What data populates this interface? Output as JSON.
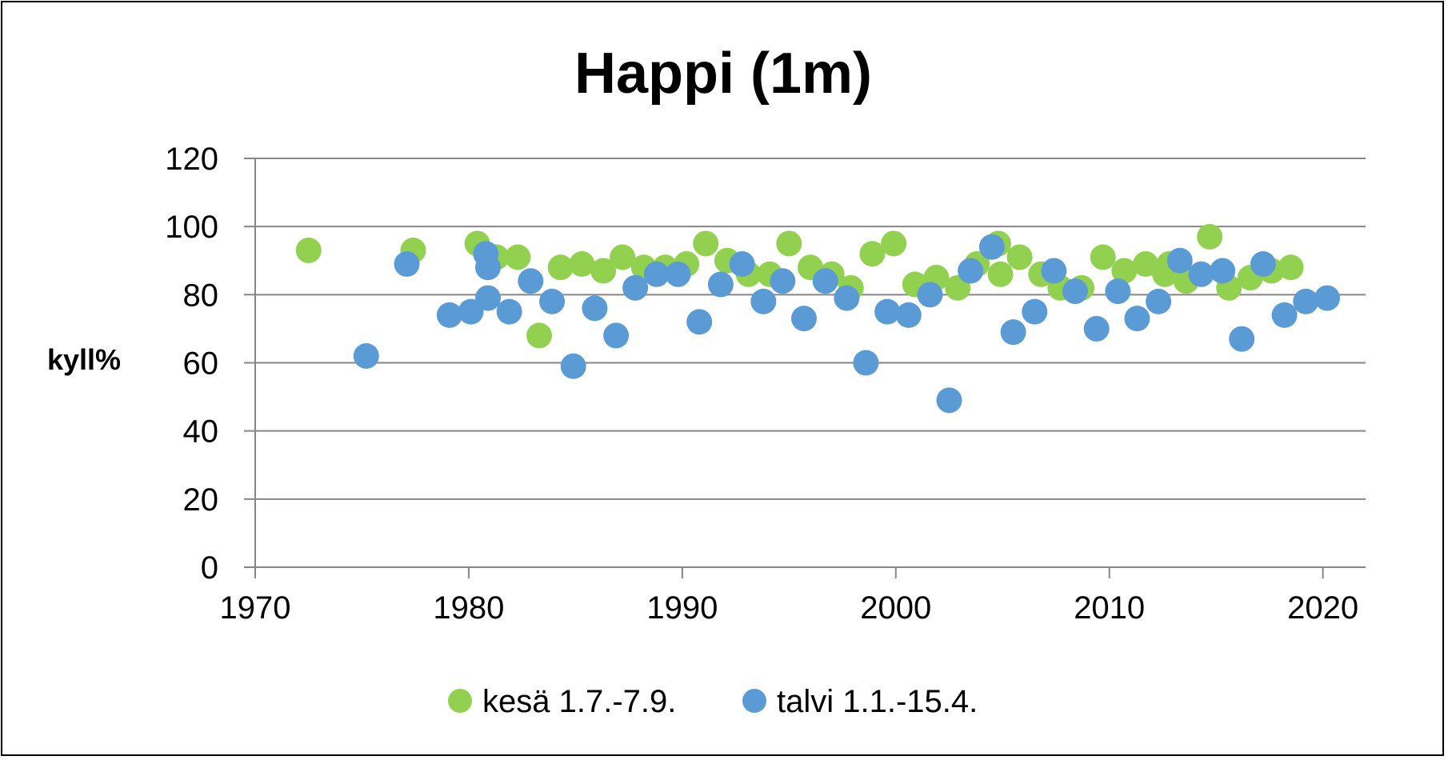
{
  "chart_data": {
    "type": "scatter",
    "title": "Happi (1m)",
    "xlabel": "",
    "ylabel": "kyll%",
    "xlim": [
      1970,
      2022
    ],
    "ylim": [
      0,
      120
    ],
    "xticks": [
      1970,
      1980,
      1990,
      2000,
      2010,
      2020
    ],
    "yticks": [
      0,
      20,
      40,
      60,
      80,
      100,
      120
    ],
    "grid": "horizontal",
    "legend_position": "bottom",
    "series": [
      {
        "name": "kesä 1.7.-7.9.",
        "color": "#92d050",
        "points": [
          [
            1972.5,
            93
          ],
          [
            1977.4,
            93
          ],
          [
            1980.4,
            95
          ],
          [
            1981.3,
            91
          ],
          [
            1982.3,
            91
          ],
          [
            1983.3,
            68
          ],
          [
            1984.3,
            88
          ],
          [
            1985.3,
            89
          ],
          [
            1986.3,
            87
          ],
          [
            1987.2,
            91
          ],
          [
            1988.2,
            88
          ],
          [
            1989.2,
            88
          ],
          [
            1990.2,
            89
          ],
          [
            1991.1,
            95
          ],
          [
            1992.1,
            90
          ],
          [
            1993.1,
            86
          ],
          [
            1994.1,
            86
          ],
          [
            1995.0,
            95
          ],
          [
            1996.0,
            88
          ],
          [
            1997.0,
            86
          ],
          [
            1997.9,
            82
          ],
          [
            1998.9,
            92
          ],
          [
            1999.9,
            95
          ],
          [
            2000.9,
            83
          ],
          [
            2001.9,
            85
          ],
          [
            2002.9,
            82
          ],
          [
            2003.8,
            89
          ],
          [
            2004.8,
            95
          ],
          [
            2004.9,
            86
          ],
          [
            2005.8,
            91
          ],
          [
            2006.8,
            86
          ],
          [
            2007.7,
            82
          ],
          [
            2008.7,
            82
          ],
          [
            2009.7,
            91
          ],
          [
            2010.7,
            87
          ],
          [
            2011.7,
            89
          ],
          [
            2012.6,
            86
          ],
          [
            2012.8,
            89
          ],
          [
            2013.6,
            84
          ],
          [
            2014.7,
            97
          ],
          [
            2015.6,
            82
          ],
          [
            2016.6,
            85
          ],
          [
            2017.6,
            87
          ],
          [
            2018.5,
            88
          ]
        ]
      },
      {
        "name": "talvi 1.1.-15.4.",
        "color": "#5b9bd5",
        "points": [
          [
            1975.2,
            62
          ],
          [
            1977.1,
            89
          ],
          [
            1979.1,
            74
          ],
          [
            1980.1,
            75
          ],
          [
            1980.8,
            92
          ],
          [
            1980.9,
            88
          ],
          [
            1980.9,
            79
          ],
          [
            1981.9,
            75
          ],
          [
            1982.9,
            84
          ],
          [
            1983.9,
            78
          ],
          [
            1984.9,
            59
          ],
          [
            1985.9,
            76
          ],
          [
            1986.9,
            68
          ],
          [
            1987.8,
            82
          ],
          [
            1988.8,
            86
          ],
          [
            1989.8,
            86
          ],
          [
            1990.8,
            72
          ],
          [
            1991.8,
            83
          ],
          [
            1992.8,
            89
          ],
          [
            1993.8,
            78
          ],
          [
            1994.7,
            84
          ],
          [
            1995.7,
            73
          ],
          [
            1996.7,
            84
          ],
          [
            1997.7,
            79
          ],
          [
            1998.6,
            60
          ],
          [
            1999.6,
            75
          ],
          [
            2000.6,
            74
          ],
          [
            2001.6,
            80
          ],
          [
            2002.5,
            49
          ],
          [
            2003.5,
            87
          ],
          [
            2004.5,
            94
          ],
          [
            2005.5,
            69
          ],
          [
            2006.5,
            75
          ],
          [
            2007.4,
            87
          ],
          [
            2008.4,
            81
          ],
          [
            2009.4,
            70
          ],
          [
            2010.4,
            81
          ],
          [
            2011.3,
            73
          ],
          [
            2012.3,
            78
          ],
          [
            2013.3,
            90
          ],
          [
            2014.3,
            86
          ],
          [
            2015.3,
            87
          ],
          [
            2016.2,
            67
          ],
          [
            2017.2,
            89
          ],
          [
            2018.2,
            74
          ],
          [
            2019.2,
            78
          ],
          [
            2020.2,
            79
          ]
        ]
      }
    ]
  }
}
